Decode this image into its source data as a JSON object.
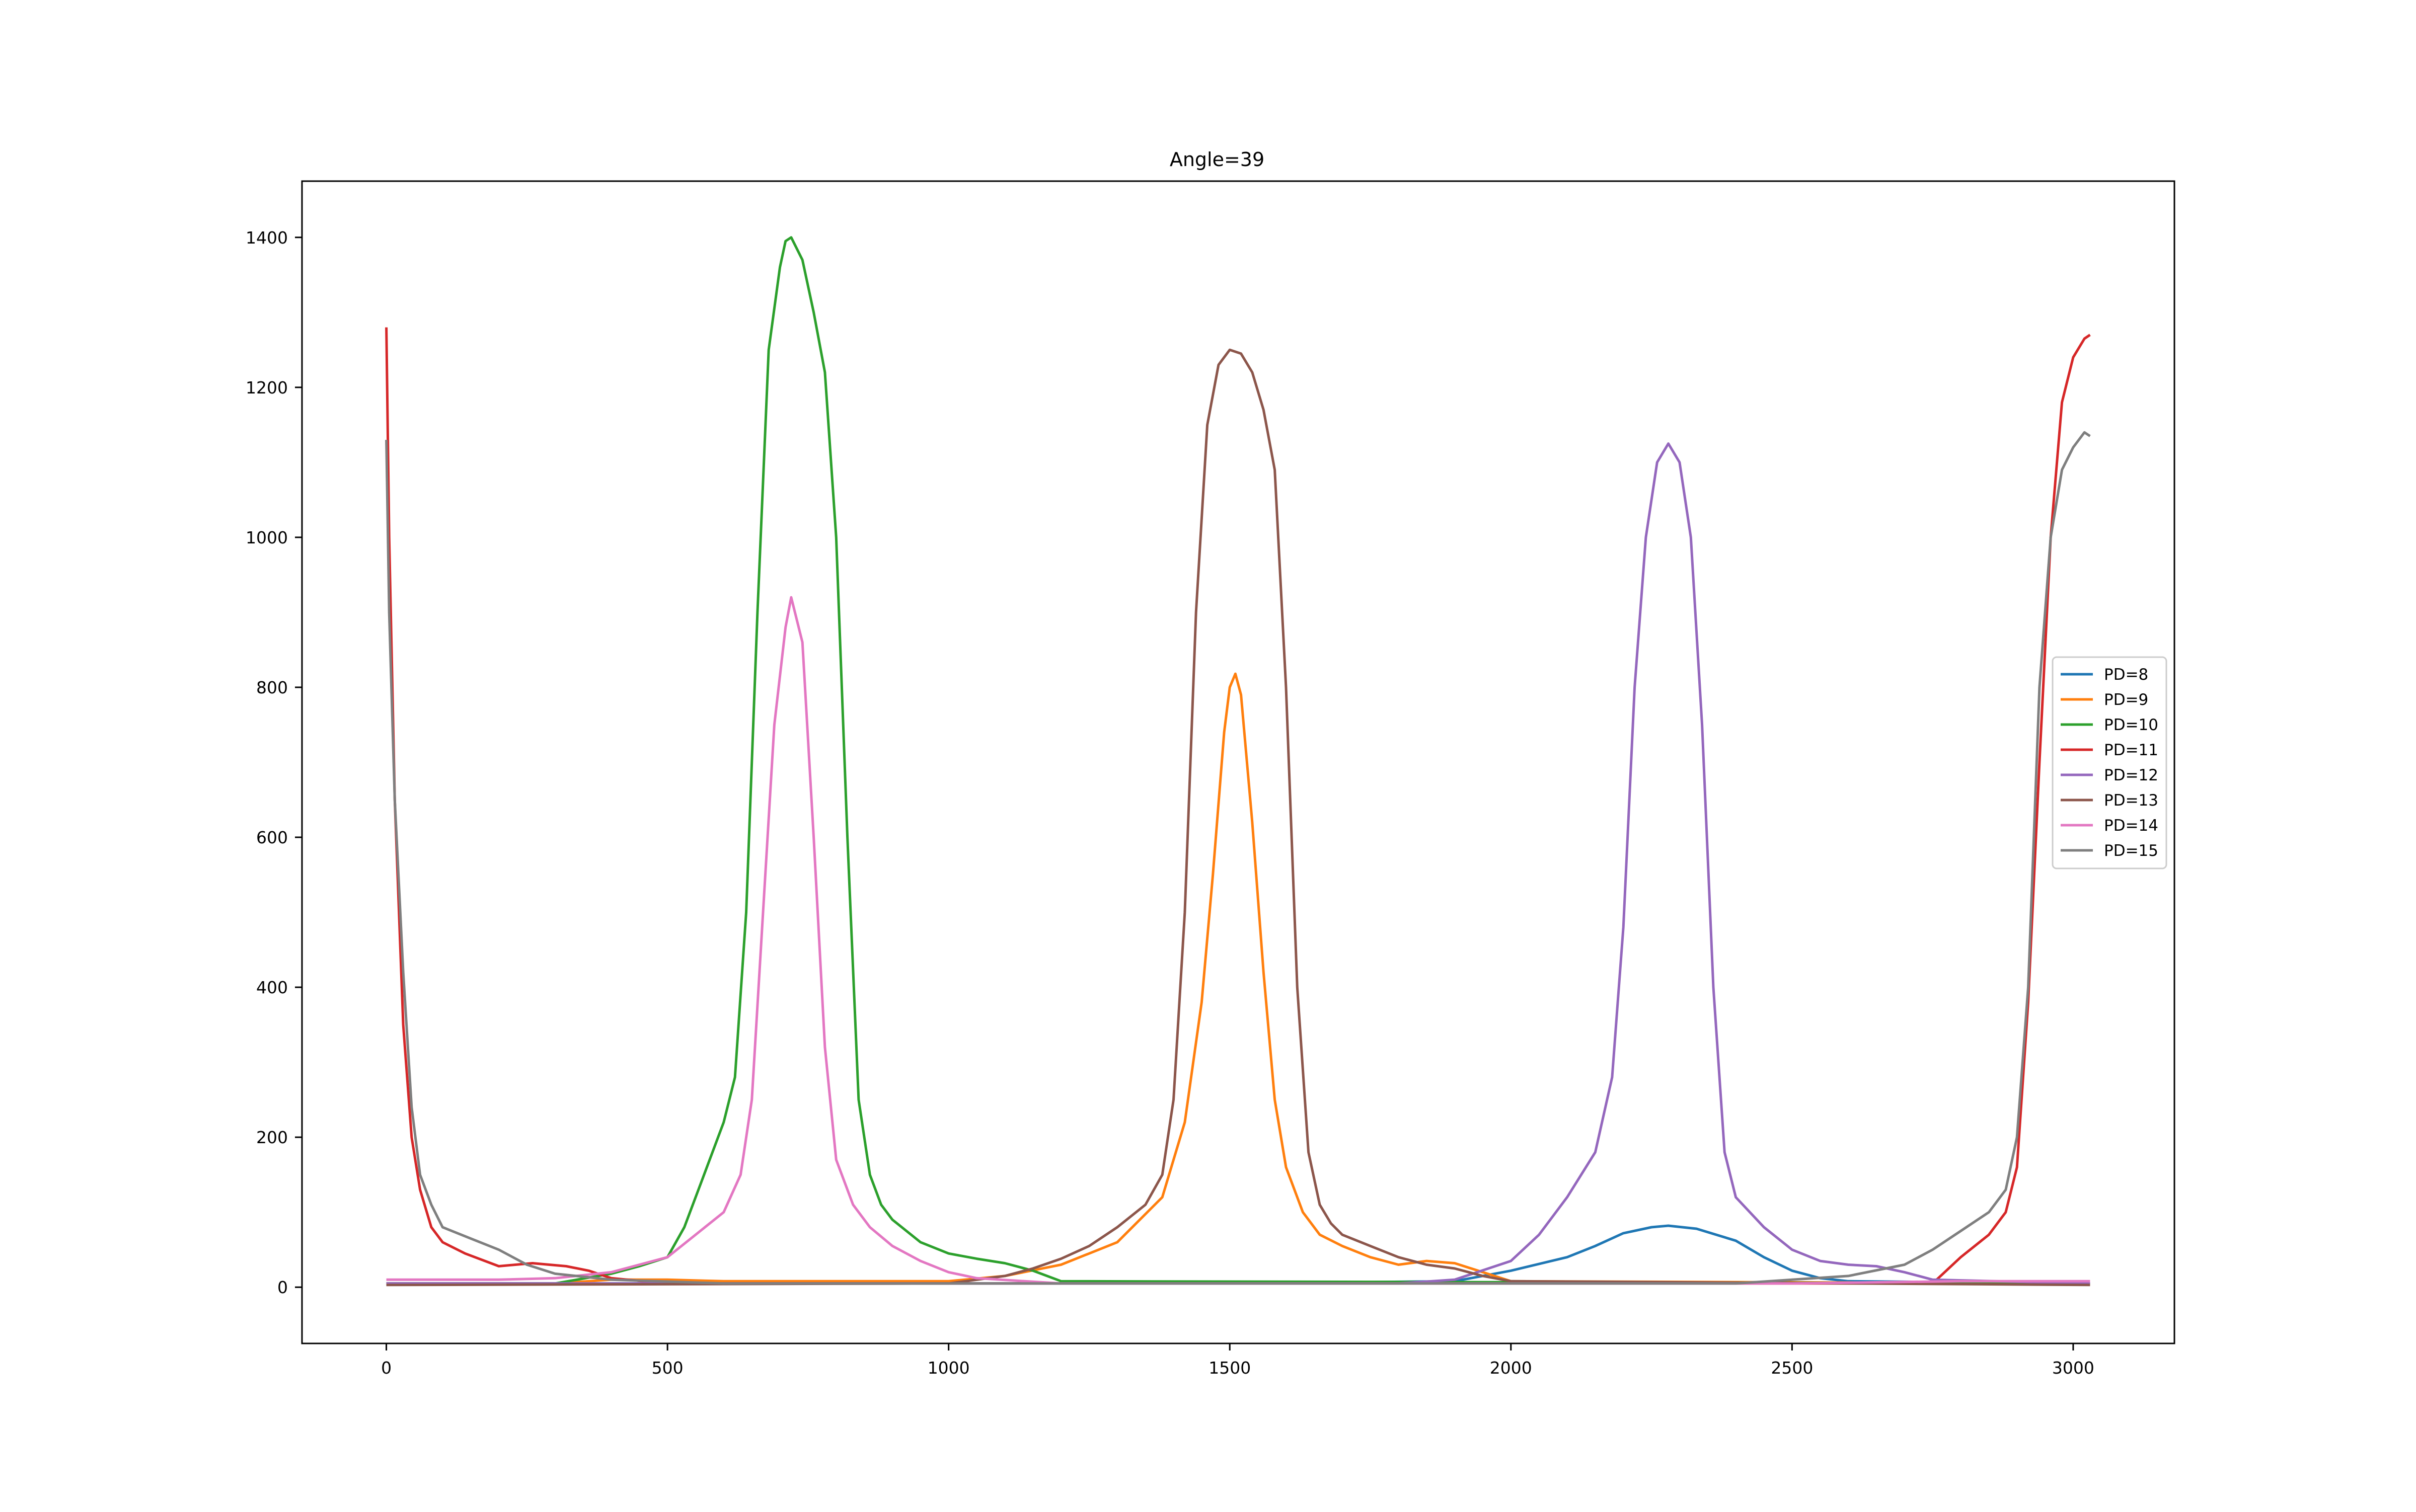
{
  "chart_data": {
    "type": "line",
    "title": "Angle=39",
    "xlabel": "",
    "ylabel": "",
    "xlim": [
      -150,
      3180
    ],
    "ylim": [
      -75,
      1475
    ],
    "xticks": [
      0,
      500,
      1000,
      1500,
      2000,
      2500,
      3000
    ],
    "yticks": [
      0,
      200,
      400,
      600,
      800,
      1000,
      1200,
      1400
    ],
    "xtick_labels": [
      "0",
      "500",
      "1000",
      "1500",
      "2000",
      "2500",
      "3000"
    ],
    "ytick_labels": [
      "0",
      "200",
      "400",
      "600",
      "800",
      "1000",
      "1200",
      "1400"
    ],
    "grid": false,
    "legend_position": "center-right",
    "series": [
      {
        "name": "PD=8",
        "color": "#1f77b4",
        "points": [
          [
            0,
            5
          ],
          [
            1500,
            5
          ],
          [
            1900,
            8
          ],
          [
            2000,
            22
          ],
          [
            2100,
            40
          ],
          [
            2150,
            55
          ],
          [
            2200,
            72
          ],
          [
            2250,
            80
          ],
          [
            2280,
            82
          ],
          [
            2330,
            78
          ],
          [
            2400,
            62
          ],
          [
            2450,
            40
          ],
          [
            2500,
            22
          ],
          [
            2550,
            12
          ],
          [
            2600,
            8
          ],
          [
            3030,
            5
          ]
        ]
      },
      {
        "name": "PD=9",
        "color": "#ff7f0e",
        "points": [
          [
            0,
            5
          ],
          [
            300,
            5
          ],
          [
            400,
            10
          ],
          [
            500,
            10
          ],
          [
            600,
            8
          ],
          [
            1000,
            8
          ],
          [
            1100,
            15
          ],
          [
            1200,
            30
          ],
          [
            1300,
            60
          ],
          [
            1380,
            120
          ],
          [
            1420,
            220
          ],
          [
            1450,
            380
          ],
          [
            1470,
            550
          ],
          [
            1490,
            740
          ],
          [
            1500,
            800
          ],
          [
            1510,
            818
          ],
          [
            1520,
            790
          ],
          [
            1540,
            620
          ],
          [
            1560,
            420
          ],
          [
            1580,
            250
          ],
          [
            1600,
            160
          ],
          [
            1630,
            100
          ],
          [
            1660,
            70
          ],
          [
            1700,
            55
          ],
          [
            1750,
            40
          ],
          [
            1800,
            30
          ],
          [
            1850,
            35
          ],
          [
            1900,
            32
          ],
          [
            1950,
            20
          ],
          [
            2000,
            8
          ],
          [
            3030,
            5
          ]
        ]
      },
      {
        "name": "PD=10",
        "color": "#2ca02c",
        "points": [
          [
            0,
            5
          ],
          [
            300,
            5
          ],
          [
            400,
            18
          ],
          [
            450,
            28
          ],
          [
            500,
            40
          ],
          [
            530,
            80
          ],
          [
            560,
            140
          ],
          [
            600,
            220
          ],
          [
            620,
            280
          ],
          [
            640,
            500
          ],
          [
            660,
            900
          ],
          [
            680,
            1250
          ],
          [
            700,
            1360
          ],
          [
            710,
            1395
          ],
          [
            720,
            1400
          ],
          [
            740,
            1370
          ],
          [
            760,
            1300
          ],
          [
            780,
            1220
          ],
          [
            800,
            1000
          ],
          [
            820,
            600
          ],
          [
            840,
            250
          ],
          [
            860,
            150
          ],
          [
            880,
            110
          ],
          [
            900,
            90
          ],
          [
            950,
            60
          ],
          [
            1000,
            45
          ],
          [
            1050,
            38
          ],
          [
            1100,
            32
          ],
          [
            1150,
            22
          ],
          [
            1200,
            8
          ],
          [
            3030,
            5
          ]
        ]
      },
      {
        "name": "PD=11",
        "color": "#d62728",
        "points": [
          [
            0,
            1280
          ],
          [
            5,
            1000
          ],
          [
            15,
            650
          ],
          [
            30,
            350
          ],
          [
            45,
            200
          ],
          [
            60,
            130
          ],
          [
            80,
            80
          ],
          [
            100,
            60
          ],
          [
            140,
            45
          ],
          [
            200,
            28
          ],
          [
            260,
            32
          ],
          [
            320,
            28
          ],
          [
            360,
            22
          ],
          [
            400,
            12
          ],
          [
            500,
            5
          ],
          [
            2750,
            5
          ],
          [
            2800,
            40
          ],
          [
            2850,
            70
          ],
          [
            2880,
            100
          ],
          [
            2900,
            160
          ],
          [
            2920,
            380
          ],
          [
            2940,
            700
          ],
          [
            2960,
            1000
          ],
          [
            2980,
            1180
          ],
          [
            3000,
            1240
          ],
          [
            3020,
            1265
          ],
          [
            3030,
            1270
          ]
        ]
      },
      {
        "name": "PD=12",
        "color": "#9467bd",
        "points": [
          [
            0,
            5
          ],
          [
            1800,
            5
          ],
          [
            1900,
            10
          ],
          [
            2000,
            35
          ],
          [
            2050,
            70
          ],
          [
            2100,
            120
          ],
          [
            2150,
            180
          ],
          [
            2180,
            280
          ],
          [
            2200,
            480
          ],
          [
            2220,
            800
          ],
          [
            2240,
            1000
          ],
          [
            2260,
            1100
          ],
          [
            2280,
            1125
          ],
          [
            2300,
            1100
          ],
          [
            2320,
            1000
          ],
          [
            2340,
            750
          ],
          [
            2360,
            400
          ],
          [
            2380,
            180
          ],
          [
            2400,
            120
          ],
          [
            2450,
            80
          ],
          [
            2500,
            50
          ],
          [
            2550,
            35
          ],
          [
            2600,
            30
          ],
          [
            2650,
            28
          ],
          [
            2700,
            20
          ],
          [
            2750,
            10
          ],
          [
            3030,
            5
          ]
        ]
      },
      {
        "name": "PD=13",
        "color": "#8c564b",
        "points": [
          [
            0,
            3
          ],
          [
            1000,
            5
          ],
          [
            1100,
            15
          ],
          [
            1150,
            25
          ],
          [
            1200,
            38
          ],
          [
            1250,
            55
          ],
          [
            1300,
            80
          ],
          [
            1350,
            110
          ],
          [
            1380,
            150
          ],
          [
            1400,
            250
          ],
          [
            1420,
            500
          ],
          [
            1440,
            900
          ],
          [
            1460,
            1150
          ],
          [
            1480,
            1230
          ],
          [
            1500,
            1250
          ],
          [
            1520,
            1245
          ],
          [
            1540,
            1220
          ],
          [
            1560,
            1170
          ],
          [
            1580,
            1090
          ],
          [
            1600,
            800
          ],
          [
            1620,
            400
          ],
          [
            1640,
            180
          ],
          [
            1660,
            110
          ],
          [
            1680,
            85
          ],
          [
            1700,
            70
          ],
          [
            1750,
            55
          ],
          [
            1800,
            40
          ],
          [
            1850,
            30
          ],
          [
            1900,
            25
          ],
          [
            1950,
            15
          ],
          [
            2000,
            8
          ],
          [
            3030,
            3
          ]
        ]
      },
      {
        "name": "PD=14",
        "color": "#e377c2",
        "points": [
          [
            0,
            10
          ],
          [
            200,
            10
          ],
          [
            300,
            12
          ],
          [
            400,
            20
          ],
          [
            500,
            40
          ],
          [
            550,
            70
          ],
          [
            600,
            100
          ],
          [
            630,
            150
          ],
          [
            650,
            250
          ],
          [
            670,
            500
          ],
          [
            690,
            750
          ],
          [
            710,
            880
          ],
          [
            720,
            920
          ],
          [
            740,
            860
          ],
          [
            760,
            600
          ],
          [
            780,
            320
          ],
          [
            800,
            170
          ],
          [
            830,
            110
          ],
          [
            860,
            80
          ],
          [
            900,
            55
          ],
          [
            950,
            35
          ],
          [
            1000,
            20
          ],
          [
            1050,
            12
          ],
          [
            1200,
            5
          ],
          [
            2500,
            5
          ],
          [
            2800,
            8
          ],
          [
            3030,
            8
          ]
        ]
      },
      {
        "name": "PD=15",
        "color": "#7f7f7f",
        "points": [
          [
            0,
            1130
          ],
          [
            5,
            900
          ],
          [
            15,
            650
          ],
          [
            30,
            420
          ],
          [
            45,
            240
          ],
          [
            60,
            150
          ],
          [
            80,
            110
          ],
          [
            100,
            80
          ],
          [
            150,
            65
          ],
          [
            200,
            50
          ],
          [
            250,
            30
          ],
          [
            300,
            18
          ],
          [
            400,
            10
          ],
          [
            600,
            5
          ],
          [
            2400,
            5
          ],
          [
            2500,
            10
          ],
          [
            2600,
            15
          ],
          [
            2700,
            30
          ],
          [
            2750,
            50
          ],
          [
            2800,
            75
          ],
          [
            2850,
            100
          ],
          [
            2880,
            130
          ],
          [
            2900,
            200
          ],
          [
            2920,
            400
          ],
          [
            2940,
            800
          ],
          [
            2960,
            1000
          ],
          [
            2980,
            1090
          ],
          [
            3000,
            1120
          ],
          [
            3020,
            1140
          ],
          [
            3030,
            1135
          ]
        ]
      }
    ]
  }
}
